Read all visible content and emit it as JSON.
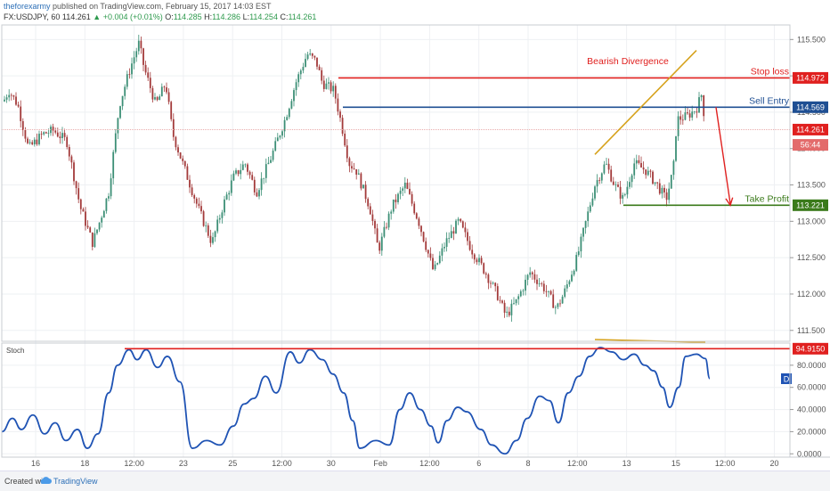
{
  "header": {
    "author": "theforexarmy",
    "published": "published on TradingView.com, February 15, 2017 14:03 EST",
    "symbol": "FX:USDJPY, 60",
    "last": "114.261",
    "change": "▲ +0.004 (+0.01%)",
    "o_label": "O:",
    "o_value": "114.285",
    "h_label": "H:",
    "h_value": "114.286",
    "l_label": "L:",
    "l_value": "114.254",
    "c_label": "C:",
    "c_value": "114.261"
  },
  "footer": {
    "created_with": "Created with",
    "brand": "TradingView"
  },
  "colors": {
    "up": "#3c8f76",
    "down": "#a33a3a",
    "red": "#e0201f",
    "blue": "#1f4f93",
    "green": "#3a7a1a",
    "gold": "#d6a21c",
    "stoch": "#1f53b4",
    "darkred": "#c0392b"
  },
  "chart_data": [
    {
      "type": "candlestick",
      "instrument": "FX:USDJPY",
      "timeframe": "60",
      "x_tick_labels": [
        "16",
        "18",
        "12:00",
        "23",
        "25",
        "12:00",
        "30",
        "Feb",
        "12:00",
        "6",
        "8",
        "12:00",
        "13",
        "15",
        "12:00",
        "20"
      ],
      "y_ticks": [
        111.5,
        112.0,
        112.5,
        113.0,
        113.5,
        114.0,
        114.5,
        115.0,
        115.5
      ],
      "y_tick_labels": [
        "111.500",
        "112.000",
        "112.500",
        "113.000",
        "113.500",
        "114.000",
        "114.500",
        "115.000",
        "115.500"
      ],
      "ylim": [
        111.35,
        115.7
      ],
      "price_path": [
        [
          0,
          114.55
        ],
        [
          10,
          114.8
        ],
        [
          20,
          114.6
        ],
        [
          32,
          114.0
        ],
        [
          48,
          114.2
        ],
        [
          60,
          114.25
        ],
        [
          75,
          114.1
        ],
        [
          90,
          113.2
        ],
        [
          104,
          112.7
        ],
        [
          112,
          113.0
        ],
        [
          122,
          113.4
        ],
        [
          134,
          114.6
        ],
        [
          146,
          115.1
        ],
        [
          156,
          115.45
        ],
        [
          162,
          115.1
        ],
        [
          175,
          114.6
        ],
        [
          186,
          114.9
        ],
        [
          194,
          114.2
        ],
        [
          205,
          113.8
        ],
        [
          222,
          113.2
        ],
        [
          238,
          112.7
        ],
        [
          250,
          113.2
        ],
        [
          262,
          113.6
        ],
        [
          275,
          113.8
        ],
        [
          288,
          113.4
        ],
        [
          305,
          113.9
        ],
        [
          320,
          114.4
        ],
        [
          332,
          114.9
        ],
        [
          345,
          115.3
        ],
        [
          355,
          115.2
        ],
        [
          362,
          114.9
        ],
        [
          375,
          114.8
        ],
        [
          384,
          114.3
        ],
        [
          392,
          113.8
        ],
        [
          400,
          113.7
        ],
        [
          415,
          113.2
        ],
        [
          425,
          112.6
        ],
        [
          440,
          113.2
        ],
        [
          455,
          113.5
        ],
        [
          470,
          113.0
        ],
        [
          487,
          112.3
        ],
        [
          500,
          112.7
        ],
        [
          515,
          113.0
        ],
        [
          530,
          112.6
        ],
        [
          545,
          112.3
        ],
        [
          558,
          112.0
        ],
        [
          568,
          111.7
        ],
        [
          580,
          111.9
        ],
        [
          595,
          112.3
        ],
        [
          610,
          112.1
        ],
        [
          625,
          111.8
        ],
        [
          633,
          112.0
        ],
        [
          648,
          112.5
        ],
        [
          656,
          112.9
        ],
        [
          668,
          113.5
        ],
        [
          680,
          113.8
        ],
        [
          690,
          113.5
        ],
        [
          700,
          113.3
        ],
        [
          712,
          113.8
        ],
        [
          725,
          113.7
        ],
        [
          738,
          113.5
        ],
        [
          748,
          113.3
        ],
        [
          756,
          113.7
        ],
        [
          760,
          114.4
        ],
        [
          772,
          114.45
        ],
        [
          782,
          114.55
        ],
        [
          788,
          114.75
        ],
        [
          792,
          114.3
        ]
      ],
      "price_axis_labels": [
        {
          "text": "114.972",
          "value": 114.972,
          "color": "#e0201f"
        },
        {
          "text": "114.569",
          "value": 114.569,
          "color": "#1f4f93"
        },
        {
          "text": "114.261",
          "value": 114.261,
          "color": "#e0201f"
        },
        {
          "text": "56:44",
          "value": 114.1,
          "color": "#e36b6b"
        },
        {
          "text": "113.221",
          "value": 113.221,
          "color": "#3a7a1a"
        }
      ],
      "levels": [
        {
          "name": "stop_loss",
          "label": "Stop loss",
          "value": 114.972,
          "x_start": 380,
          "color": "#e0201f"
        },
        {
          "name": "sell_entry",
          "label": "Sell Entry",
          "value": 114.569,
          "x_start": 385,
          "color": "#1f4f93"
        },
        {
          "name": "take_profit",
          "label": "Take Profit",
          "value": 113.221,
          "x_start": 700,
          "color": "#3a7a1a"
        }
      ],
      "annotation": {
        "text": "Bearish Divergence",
        "color": "#e0201f"
      },
      "divergence_line": {
        "from": [
          668,
          113.92
        ],
        "to": [
          782,
          115.35
        ]
      },
      "target_arrow": {
        "from": [
          804,
          114.569
        ],
        "to": [
          820,
          113.221
        ]
      }
    },
    {
      "type": "line",
      "title": "Stoch",
      "ylim": [
        -3,
        100
      ],
      "y_ticks": [
        0,
        20,
        40,
        60,
        80
      ],
      "y_tick_labels": [
        "0.0000",
        "20.0000",
        "40.0000",
        "60.0000",
        "80.0000"
      ],
      "overbought_label": "94.9150",
      "overbought_value": 94.915,
      "d_label": "D",
      "series": [
        {
          "values": [
            [
              0,
              20
            ],
            [
              12,
              32
            ],
            [
              22,
              22
            ],
            [
              35,
              35
            ],
            [
              48,
              18
            ],
            [
              60,
              28
            ],
            [
              72,
              12
            ],
            [
              85,
              22
            ],
            [
              96,
              5
            ],
            [
              108,
              18
            ],
            [
              120,
              55
            ],
            [
              130,
              80
            ],
            [
              143,
              94
            ],
            [
              152,
              85
            ],
            [
              162,
              94
            ],
            [
              175,
              78
            ],
            [
              186,
              88
            ],
            [
              200,
              65
            ],
            [
              214,
              5
            ],
            [
              230,
              12
            ],
            [
              245,
              8
            ],
            [
              260,
              25
            ],
            [
              272,
              45
            ],
            [
              283,
              50
            ],
            [
              296,
              70
            ],
            [
              308,
              55
            ],
            [
              324,
              92
            ],
            [
              334,
              82
            ],
            [
              346,
              94
            ],
            [
              360,
              85
            ],
            [
              372,
              72
            ],
            [
              384,
              55
            ],
            [
              394,
              30
            ],
            [
              402,
              5
            ],
            [
              420,
              12
            ],
            [
              435,
              8
            ],
            [
              447,
              40
            ],
            [
              458,
              55
            ],
            [
              470,
              40
            ],
            [
              482,
              25
            ],
            [
              490,
              10
            ],
            [
              500,
              30
            ],
            [
              512,
              42
            ],
            [
              522,
              38
            ],
            [
              538,
              22
            ],
            [
              550,
              8
            ],
            [
              565,
              0
            ],
            [
              578,
              12
            ],
            [
              590,
              32
            ],
            [
              604,
              52
            ],
            [
              615,
              48
            ],
            [
              625,
              28
            ],
            [
              636,
              55
            ],
            [
              648,
              70
            ],
            [
              660,
              88
            ],
            [
              672,
              96
            ],
            [
              685,
              92
            ],
            [
              698,
              85
            ],
            [
              710,
              90
            ],
            [
              722,
              80
            ],
            [
              732,
              75
            ],
            [
              742,
              60
            ],
            [
              750,
              42
            ],
            [
              760,
              60
            ],
            [
              768,
              88
            ],
            [
              780,
              90
            ],
            [
              790,
              86
            ],
            [
              795,
              68
            ]
          ]
        }
      ],
      "divergence_line": {
        "from": [
          668,
          100
        ],
        "to": [
          792,
          97.5
        ]
      }
    }
  ]
}
